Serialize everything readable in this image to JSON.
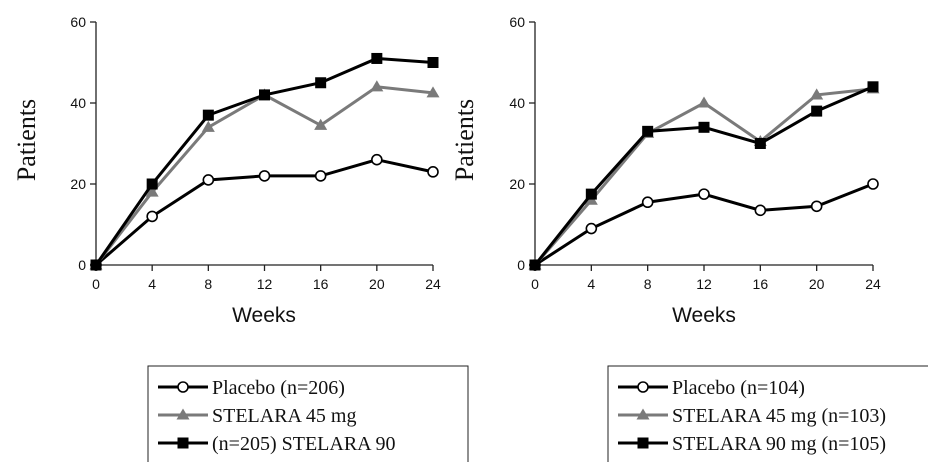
{
  "chart_data": [
    {
      "type": "line",
      "xlabel": "Weeks",
      "ylabel": "Patients",
      "x": [
        0,
        4,
        8,
        12,
        16,
        20,
        24
      ],
      "xticks": [
        0,
        4,
        8,
        12,
        16,
        20,
        24
      ],
      "yticks": [
        0,
        20,
        40,
        60
      ],
      "xlim": [
        0,
        24
      ],
      "ylim": [
        0,
        60
      ],
      "grid": false,
      "legend_position": "bottom",
      "series": [
        {
          "name": "Placebo (n=206)",
          "marker": "circle-open",
          "color": "#000000",
          "values": [
            0,
            12,
            21,
            22,
            22,
            26,
            23
          ]
        },
        {
          "name": "STELARA 45 mg",
          "marker": "triangle",
          "color": "#7a7a7a",
          "values": [
            0,
            18,
            34,
            42,
            34.5,
            44,
            42.5
          ]
        },
        {
          "name": "(n=205) STELARA 90",
          "marker": "square",
          "color": "#000000",
          "values": [
            0,
            20,
            37,
            42,
            45,
            51,
            50
          ]
        }
      ]
    },
    {
      "type": "line",
      "xlabel": "Weeks",
      "ylabel": "Patients",
      "x": [
        0,
        4,
        8,
        12,
        16,
        20,
        24
      ],
      "xticks": [
        0,
        4,
        8,
        12,
        16,
        20,
        24
      ],
      "yticks": [
        0,
        20,
        40,
        60
      ],
      "xlim": [
        0,
        24
      ],
      "ylim": [
        0,
        60
      ],
      "grid": false,
      "legend_position": "bottom",
      "series": [
        {
          "name": "Placebo (n=104)",
          "marker": "circle-open",
          "color": "#000000",
          "values": [
            0,
            9,
            15.5,
            17.5,
            13.5,
            14.5,
            20
          ]
        },
        {
          "name": "STELARA 45 mg (n=103)",
          "marker": "triangle",
          "color": "#7a7a7a",
          "values": [
            0,
            16,
            32.5,
            40,
            30.5,
            42,
            43.5
          ]
        },
        {
          "name": "STELARA 90 mg (n=105)",
          "marker": "square",
          "color": "#000000",
          "values": [
            0,
            17.5,
            33,
            34,
            30,
            38,
            44
          ]
        }
      ]
    }
  ]
}
